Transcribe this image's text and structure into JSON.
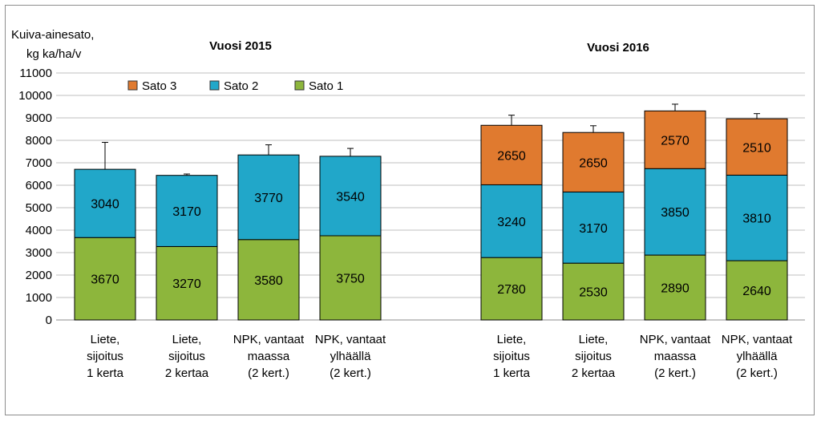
{
  "chart_data": {
    "type": "bar",
    "stacked": true,
    "ylabel_lines": [
      "Kuiva-ainesato,",
      "kg ka/ha/v"
    ],
    "ylim": [
      0,
      11000
    ],
    "yticks": [
      0,
      1000,
      2000,
      3000,
      4000,
      5000,
      6000,
      7000,
      8000,
      9000,
      10000,
      11000
    ],
    "grid": true,
    "legend": [
      "Sato 3",
      "Sato 2",
      "Sato 1"
    ],
    "colors": {
      "Sato 1": "#8db63c",
      "Sato 2": "#21a7c9",
      "Sato 3": "#e07a2f"
    },
    "groups": [
      {
        "title": "Vuosi 2015",
        "bars": [
          {
            "label": [
              "Liete,",
              "sijoitus",
              "1 kerta"
            ],
            "values": {
              "Sato 1": 3670,
              "Sato 2": 3040
            },
            "error": 1200
          },
          {
            "label": [
              "Liete,",
              "sijoitus",
              "2 kertaa"
            ],
            "values": {
              "Sato 1": 3270,
              "Sato 2": 3170
            },
            "error": 60
          },
          {
            "label": [
              "NPK, vantaat",
              "maassa",
              "(2 kert.)"
            ],
            "values": {
              "Sato 1": 3580,
              "Sato 2": 3770
            },
            "error": 450
          },
          {
            "label": [
              "NPK, vantaat",
              "ylhäällä",
              "(2 kert.)"
            ],
            "values": {
              "Sato 1": 3750,
              "Sato 2": 3540
            },
            "error": 350
          }
        ]
      },
      {
        "title": "Vuosi 2016",
        "bars": [
          {
            "label": [
              "Liete,",
              "sijoitus",
              "1 kerta"
            ],
            "values": {
              "Sato 1": 2780,
              "Sato 2": 3240,
              "Sato 3": 2650
            },
            "error": 450
          },
          {
            "label": [
              "Liete,",
              "sijoitus",
              "2 kertaa"
            ],
            "values": {
              "Sato 1": 2530,
              "Sato 2": 3170,
              "Sato 3": 2650
            },
            "error": 300
          },
          {
            "label": [
              "NPK, vantaat",
              "maassa",
              "(2 kert.)"
            ],
            "values": {
              "Sato 1": 2890,
              "Sato 2": 3850,
              "Sato 3": 2570
            },
            "error": 300
          },
          {
            "label": [
              "NPK, vantaat",
              "ylhäällä",
              "(2 kert.)"
            ],
            "values": {
              "Sato 1": 2640,
              "Sato 2": 3810,
              "Sato 3": 2510
            },
            "error": 230
          }
        ]
      }
    ]
  }
}
